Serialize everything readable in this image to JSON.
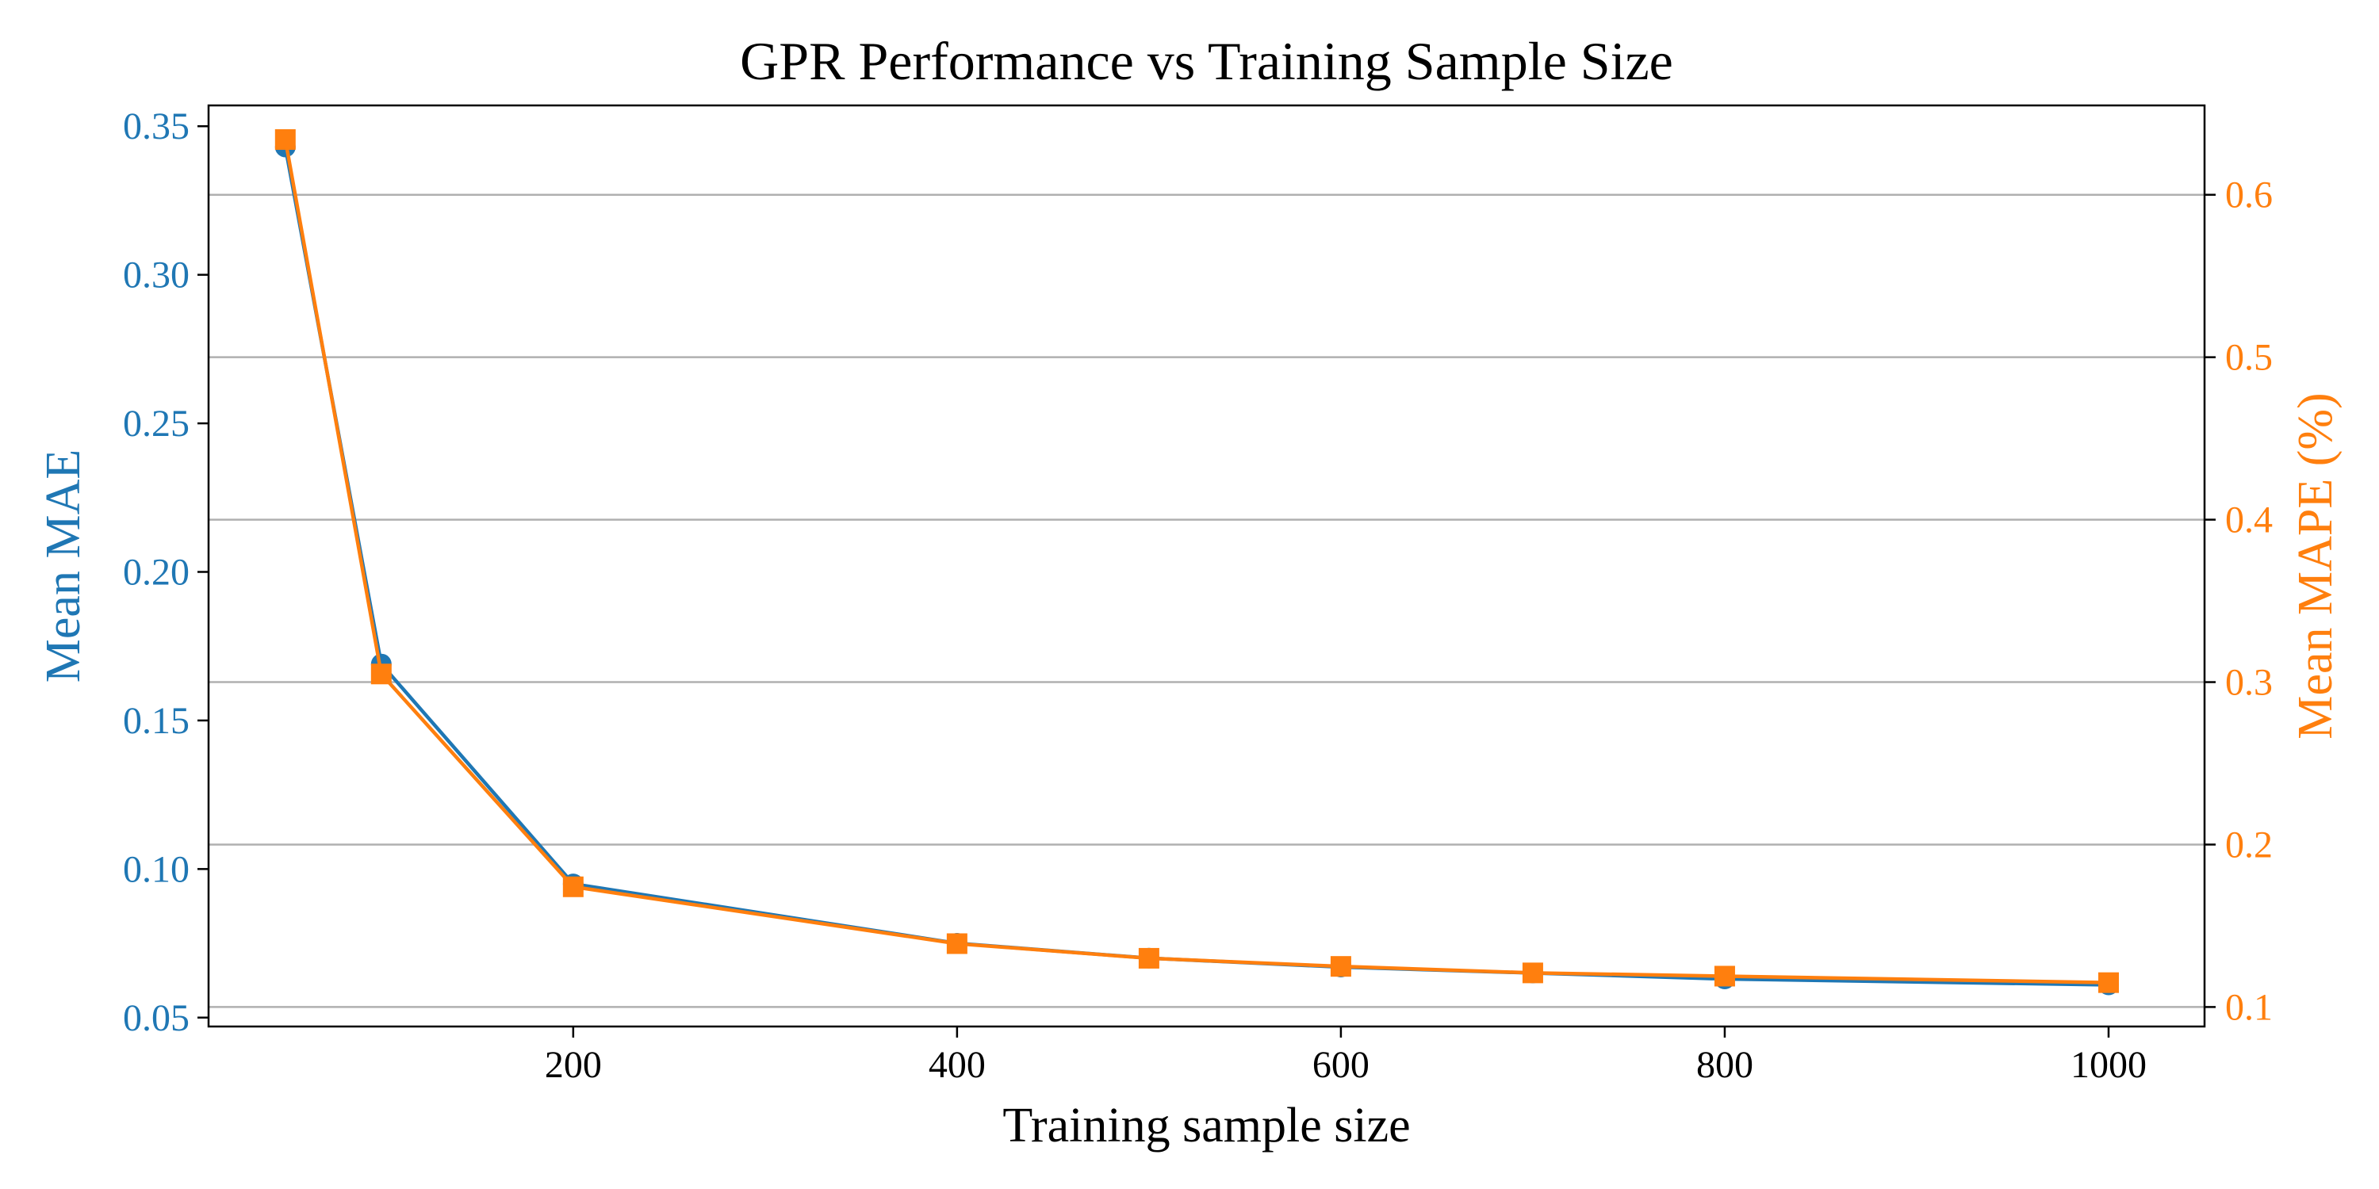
{
  "chart_data": {
    "type": "line",
    "title": "GPR Performance vs Training Sample Size",
    "xlabel": "Training sample size",
    "ylabel_left": "Mean MAE",
    "ylabel_right": "Mean MAPE (%)",
    "x": [
      50,
      100,
      200,
      400,
      500,
      600,
      700,
      800,
      1000
    ],
    "xlim": [
      10,
      1050
    ],
    "x_ticks": [
      200,
      400,
      600,
      800,
      1000
    ],
    "ylim_left": [
      0.047,
      0.357
    ],
    "y_ticks_left": [
      0.05,
      0.1,
      0.15,
      0.2,
      0.25,
      0.3,
      0.35
    ],
    "ylim_right": [
      0.088,
      0.655
    ],
    "y_ticks_right": [
      0.1,
      0.2,
      0.3,
      0.4,
      0.5,
      0.6
    ],
    "grid": "horizontal lines at right-axis ticks",
    "series": [
      {
        "axis": "left",
        "color": "#1f77b4",
        "marker": "circle",
        "values": [
          0.343,
          0.169,
          0.095,
          0.075,
          0.07,
          0.067,
          0.065,
          0.063,
          0.061
        ]
      },
      {
        "axis": "right",
        "color": "#ff7f0e",
        "marker": "square",
        "values": [
          0.634,
          0.305,
          0.174,
          0.139,
          0.13,
          0.125,
          0.121,
          0.119,
          0.115
        ]
      }
    ],
    "left_axis_color": "#1f77b4",
    "right_axis_color": "#ff7f0e"
  }
}
